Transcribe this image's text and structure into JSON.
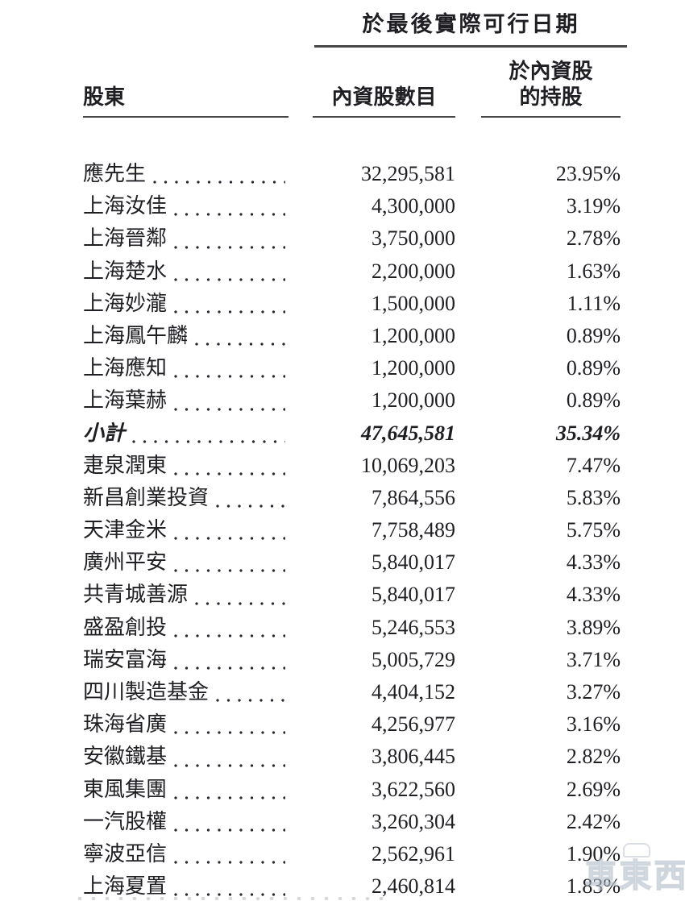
{
  "table": {
    "span_header": "於最後實際可行日期",
    "columns": {
      "shareholder": "股東",
      "shares": "內資股數目",
      "pct_line1": "於內資股",
      "pct_line2": "的持股"
    },
    "rows": [
      {
        "name": "應先生",
        "shares": "32,295,581",
        "pct": "23.95%",
        "subtotal": false
      },
      {
        "name": "上海汝佳",
        "shares": "4,300,000",
        "pct": "3.19%",
        "subtotal": false
      },
      {
        "name": "上海晉鄰",
        "shares": "3,750,000",
        "pct": "2.78%",
        "subtotal": false
      },
      {
        "name": "上海楚水",
        "shares": "2,200,000",
        "pct": "1.63%",
        "subtotal": false
      },
      {
        "name": "上海妙瀧",
        "shares": "1,500,000",
        "pct": "1.11%",
        "subtotal": false
      },
      {
        "name": "上海鳳午麟",
        "shares": "1,200,000",
        "pct": "0.89%",
        "subtotal": false
      },
      {
        "name": "上海應知",
        "shares": "1,200,000",
        "pct": "0.89%",
        "subtotal": false
      },
      {
        "name": "上海葉赫",
        "shares": "1,200,000",
        "pct": "0.89%",
        "subtotal": false
      },
      {
        "name": "小計",
        "shares": "47,645,581",
        "pct": "35.34%",
        "subtotal": true
      },
      {
        "name": "疌泉潤東",
        "shares": "10,069,203",
        "pct": "7.47%",
        "subtotal": false
      },
      {
        "name": "新昌創業投資",
        "shares": "7,864,556",
        "pct": "5.83%",
        "subtotal": false
      },
      {
        "name": "天津金米",
        "shares": "7,758,489",
        "pct": "5.75%",
        "subtotal": false
      },
      {
        "name": "廣州平安",
        "shares": "5,840,017",
        "pct": "4.33%",
        "subtotal": false
      },
      {
        "name": "共青城善源",
        "shares": "5,840,017",
        "pct": "4.33%",
        "subtotal": false
      },
      {
        "name": "盛盈創投",
        "shares": "5,246,553",
        "pct": "3.89%",
        "subtotal": false
      },
      {
        "name": "瑞安富海",
        "shares": "5,005,729",
        "pct": "3.71%",
        "subtotal": false
      },
      {
        "name": "四川製造基金",
        "shares": "4,404,152",
        "pct": "3.27%",
        "subtotal": false
      },
      {
        "name": "珠海省廣",
        "shares": "4,256,977",
        "pct": "3.16%",
        "subtotal": false
      },
      {
        "name": "安徽鐵基",
        "shares": "3,806,445",
        "pct": "2.82%",
        "subtotal": false
      },
      {
        "name": "東風集團",
        "shares": "3,622,560",
        "pct": "2.69%",
        "subtotal": false
      },
      {
        "name": "一汽股權",
        "shares": "3,260,304",
        "pct": "2.42%",
        "subtotal": false
      },
      {
        "name": "寧波亞信",
        "shares": "2,562,961",
        "pct": "1.90%",
        "subtotal": false
      },
      {
        "name": "上海夏置",
        "shares": "2,460,814",
        "pct": "1.83%",
        "subtotal": false
      }
    ]
  },
  "watermark": {
    "text": "車東西"
  }
}
